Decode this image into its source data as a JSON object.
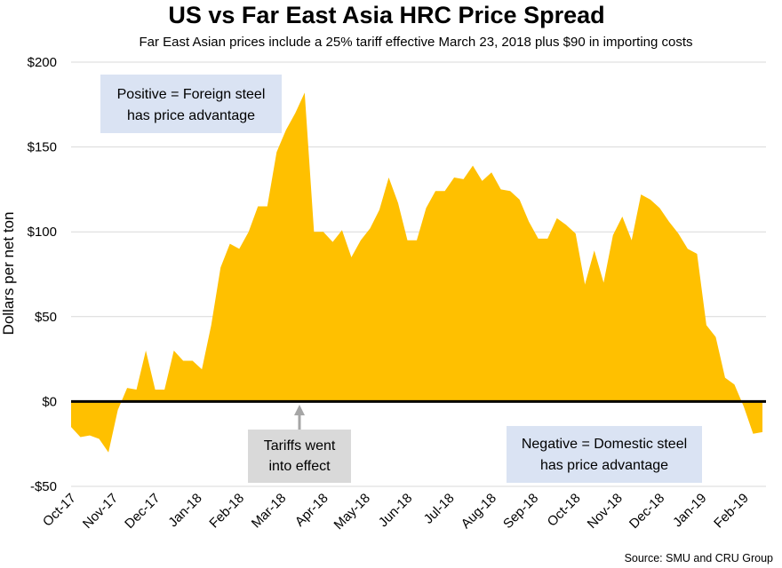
{
  "chart_data": {
    "type": "area",
    "title": "US vs Far East Asia HRC Price Spread",
    "subtitle": "Far East Asian prices include a 25% tariff effective March 23, 2018 plus $90 in importing costs",
    "xlabel": "",
    "ylabel": "Dollars per net ton",
    "ylim": [
      -50,
      200
    ],
    "y_ticks": [
      200,
      150,
      100,
      50,
      0,
      -50
    ],
    "y_tick_labels": [
      "$200",
      "$150",
      "$100",
      "$50",
      "$0",
      "-$50"
    ],
    "grid": true,
    "x_tick_labels": [
      "Oct-17",
      "Nov-17",
      "Dec-17",
      "Jan-18",
      "Feb-18",
      "Mar-18",
      "Apr-18",
      "May-18",
      "Jun-18",
      "Jul-18",
      "Aug-18",
      "Sep-18",
      "Oct-18",
      "Nov-18",
      "Dec-18",
      "Jan-19",
      "Feb-19"
    ],
    "series": [
      {
        "name": "US vs Far East Asia HRC Price Spread",
        "color": "#FFC000",
        "values": [
          -15,
          -21,
          -20,
          -22,
          -30,
          -5,
          8,
          7,
          30,
          7,
          7,
          30,
          24,
          24,
          19,
          45,
          79,
          93,
          90,
          100,
          115,
          115,
          147,
          160,
          170,
          182,
          100,
          100,
          94,
          101,
          85,
          95,
          102,
          113,
          132,
          117,
          95,
          95,
          114,
          124,
          124,
          132,
          131,
          139,
          130,
          135,
          125,
          124,
          119,
          106,
          96,
          96,
          108,
          104,
          99,
          69,
          89,
          70,
          98,
          109,
          95,
          122,
          119,
          114,
          106,
          99,
          90,
          87,
          45,
          38,
          14,
          10,
          -3,
          -19,
          -18
        ]
      }
    ],
    "annotations": {
      "positive": [
        "Positive = Foreign steel",
        "has price advantage"
      ],
      "tariff": [
        "Tariffs went",
        "into effect"
      ],
      "negative": [
        "Negative = Domestic steel",
        "has price advantage"
      ]
    },
    "source": "Source: SMU and CRU Group"
  },
  "colors": {
    "area": "#FFC000",
    "grid": "#d9d9d9",
    "zero_line": "#000000",
    "positive_box": "#dae3f3",
    "tariff_box": "#d9d9d9",
    "negative_box": "#dae3f3",
    "arrow": "#a6a6a6"
  }
}
